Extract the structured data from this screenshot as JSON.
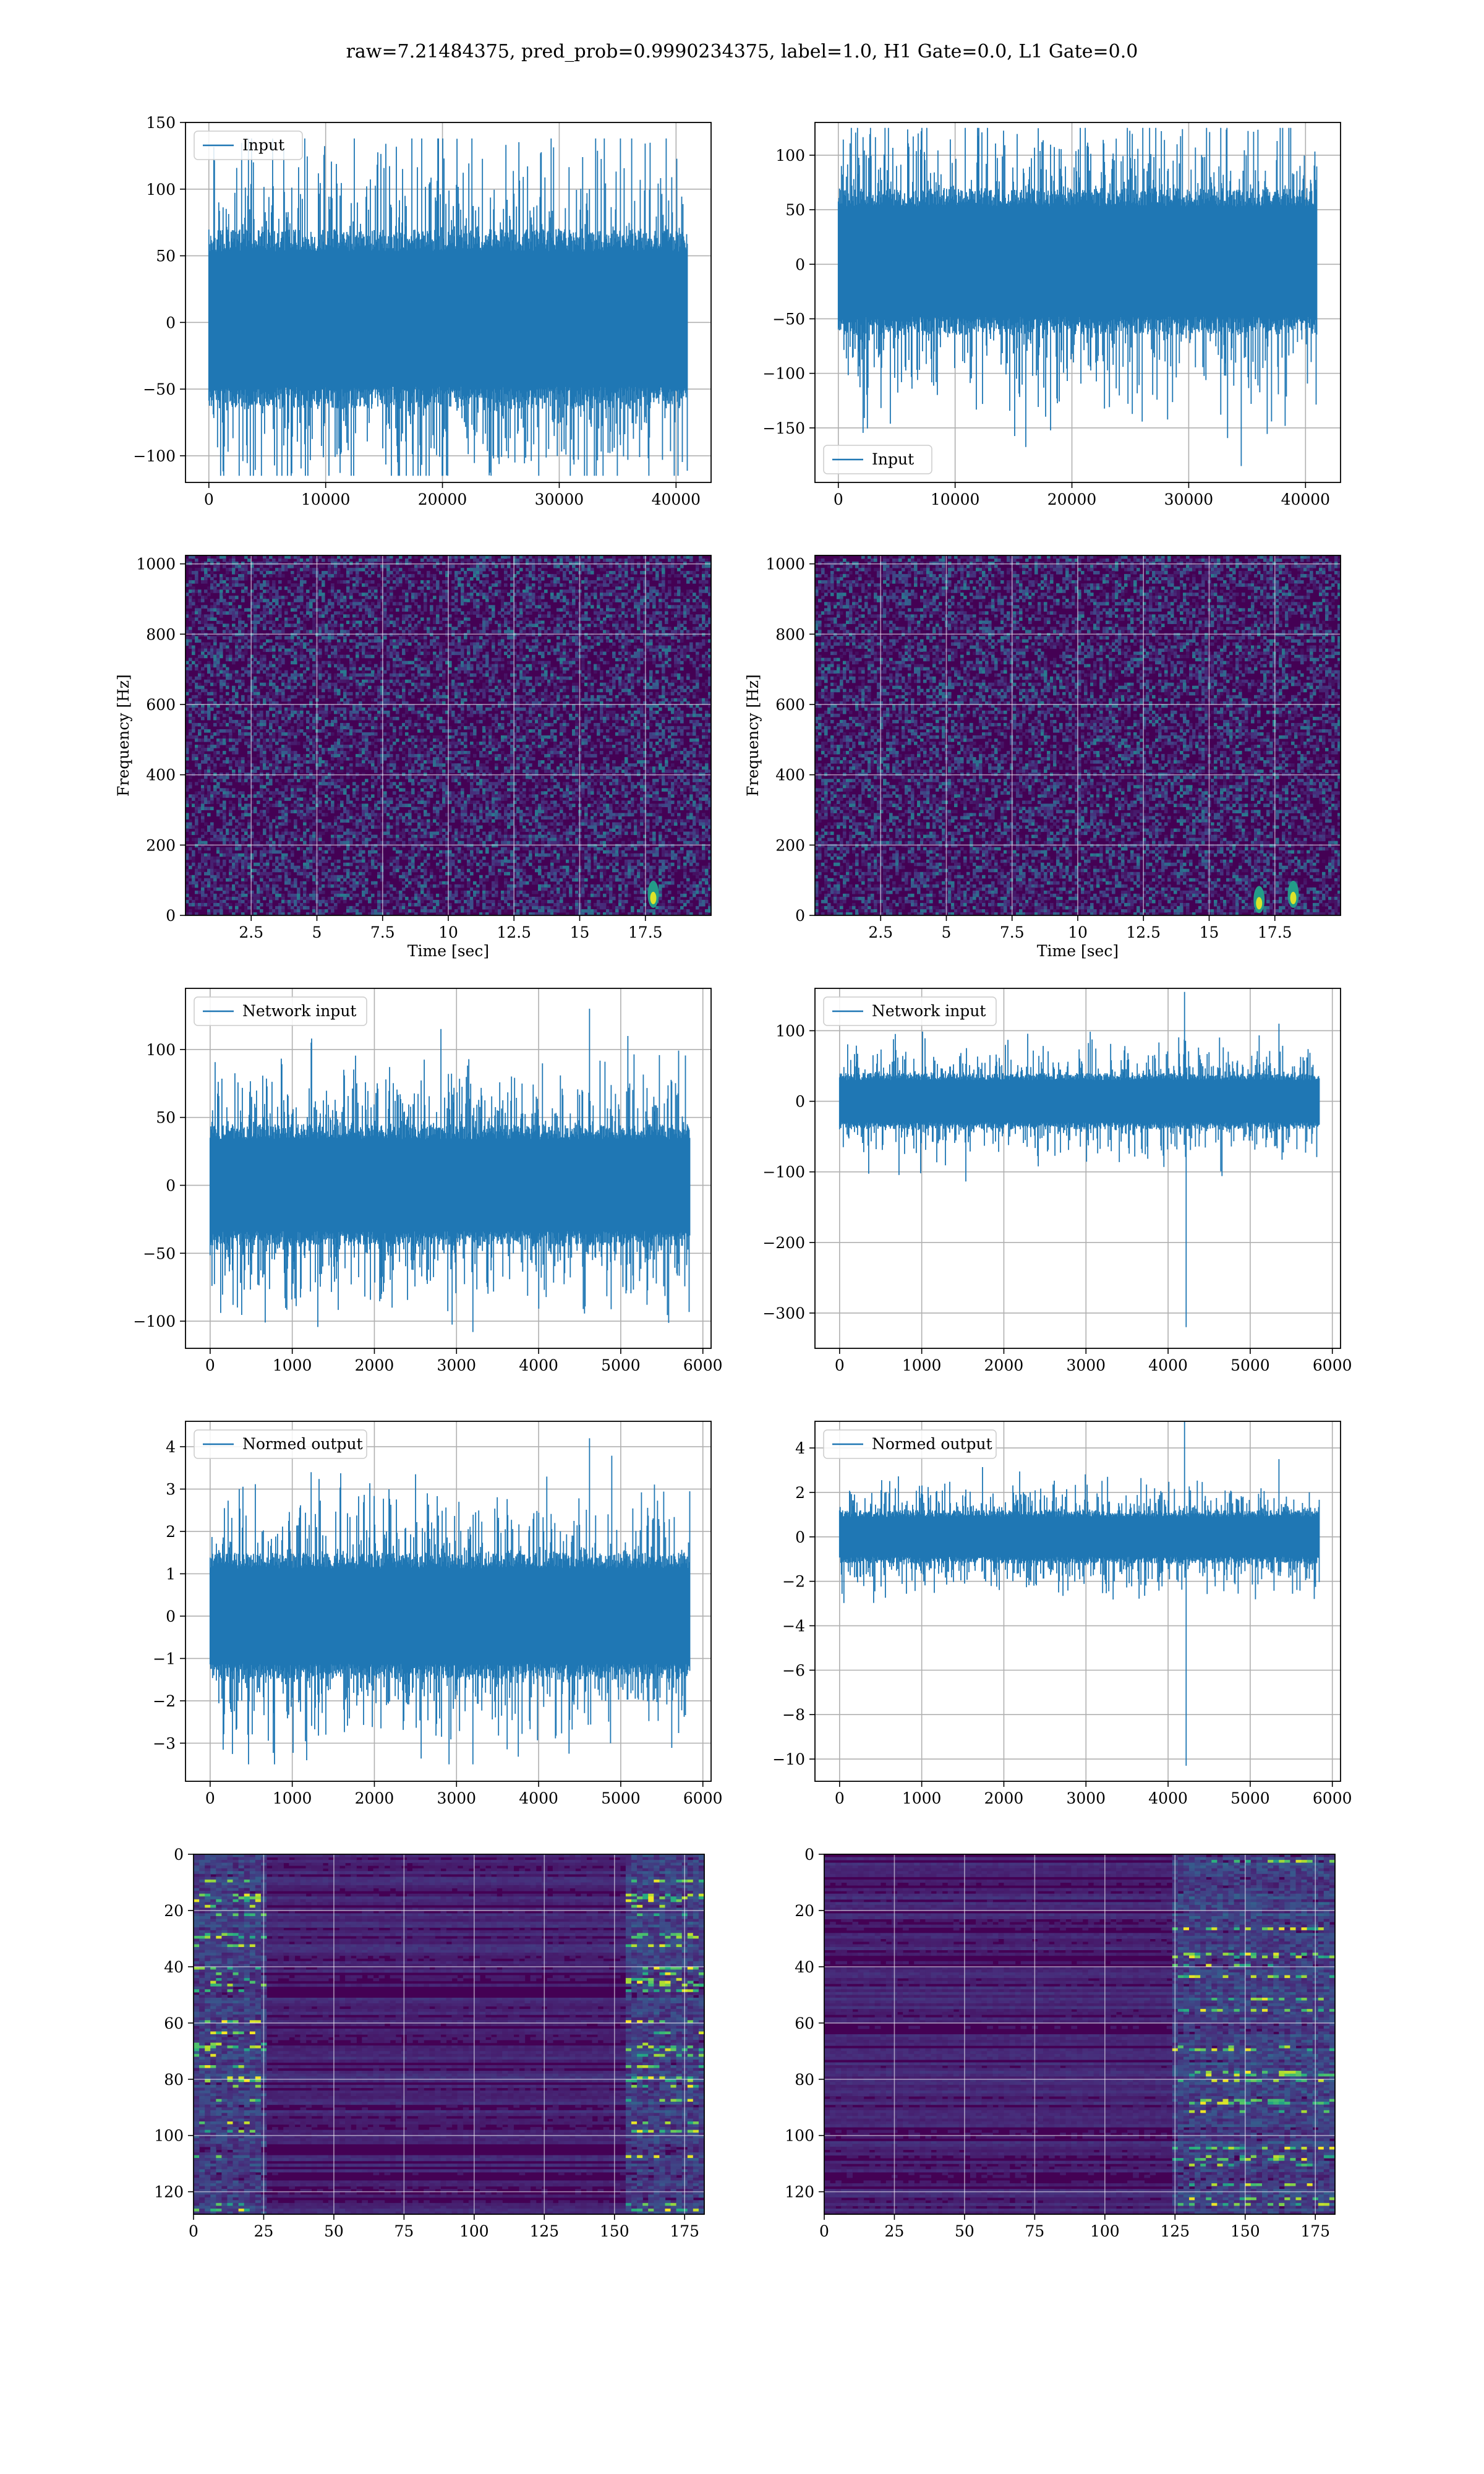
{
  "suptitle": "raw=7.21484375, pred_prob=0.9990234375, label=1.0, H1 Gate=0.0, L1 Gate=0.0",
  "colors": {
    "line": "#1f77b4",
    "grid": "#b0b0b0",
    "viridis_low": "#440154",
    "viridis_high": "#fde725"
  },
  "chart_data": [
    {
      "id": "input-h1",
      "type": "line",
      "legend": "Input",
      "legend_loc": "upper left",
      "xlim": [
        -2000,
        43000
      ],
      "ylim": [
        -120,
        150
      ],
      "xticks": [
        0,
        10000,
        20000,
        30000,
        40000
      ],
      "yticks": [
        -100,
        -50,
        0,
        50,
        100,
        150
      ],
      "series": [
        {
          "x_range": [
            0,
            40960
          ],
          "n_samples": 40960,
          "typical_band": [
            -65,
            70
          ],
          "min": -115,
          "max": 138,
          "spikes": [
            [
              36200,
              138
            ],
            [
              26200,
              -105
            ],
            [
              4500,
              -115
            ]
          ]
        }
      ]
    },
    {
      "id": "input-l1",
      "type": "line",
      "legend": "Input",
      "legend_loc": "lower left",
      "xlim": [
        -2000,
        43000
      ],
      "ylim": [
        -200,
        130
      ],
      "xticks": [
        0,
        10000,
        20000,
        30000,
        40000
      ],
      "yticks": [
        -150,
        -100,
        -50,
        0,
        50,
        100
      ],
      "series": [
        {
          "x_range": [
            0,
            40960
          ],
          "n_samples": 40960,
          "typical_band": [
            -65,
            70
          ],
          "min": -185,
          "max": 125,
          "spikes": [
            [
              34500,
              -185
            ],
            [
              4000,
              125
            ],
            [
              29000,
              110
            ]
          ]
        }
      ]
    },
    {
      "id": "spectrogram-h1",
      "type": "heatmap",
      "xlabel": "Time [sec]",
      "ylabel": "Frequency [Hz]",
      "xlim": [
        0,
        20
      ],
      "ylim": [
        0,
        1024
      ],
      "xticks": [
        2.5,
        5.0,
        7.5,
        10.0,
        12.5,
        15.0,
        17.5
      ],
      "yticks": [
        0,
        200,
        400,
        600,
        800,
        1000
      ],
      "colormap": "viridis",
      "hotspots": [
        [
          17.8,
          60
        ]
      ]
    },
    {
      "id": "spectrogram-l1",
      "type": "heatmap",
      "xlabel": "Time [sec]",
      "ylabel": "Frequency [Hz]",
      "xlim": [
        0,
        20
      ],
      "ylim": [
        0,
        1024
      ],
      "xticks": [
        2.5,
        5.0,
        7.5,
        10.0,
        12.5,
        15.0,
        17.5
      ],
      "yticks": [
        0,
        200,
        400,
        600,
        800,
        1000
      ],
      "colormap": "viridis",
      "hotspots": [
        [
          16.9,
          45
        ],
        [
          18.2,
          60
        ]
      ]
    },
    {
      "id": "network-input-h1",
      "type": "line",
      "legend": "Network input",
      "legend_loc": "upper left",
      "xlim": [
        -300,
        6100
      ],
      "ylim": [
        -120,
        145
      ],
      "xticks": [
        0,
        1000,
        2000,
        3000,
        4000,
        5000,
        6000
      ],
      "yticks": [
        -100,
        -50,
        0,
        50,
        100
      ],
      "series": [
        {
          "x_range": [
            0,
            5840
          ],
          "n_samples": 5840,
          "typical_band": [
            -45,
            45
          ],
          "min": -108,
          "max": 130,
          "spikes": [
            [
              4620,
              130
            ],
            [
              3200,
              -108
            ],
            [
              1230,
              105
            ]
          ]
        }
      ]
    },
    {
      "id": "network-input-l1",
      "type": "line",
      "legend": "Network input",
      "legend_loc": "upper left",
      "xlim": [
        -300,
        6100
      ],
      "ylim": [
        -350,
        160
      ],
      "xticks": [
        0,
        1000,
        2000,
        3000,
        4000,
        5000,
        6000
      ],
      "yticks": [
        -300,
        -200,
        -100,
        0,
        100
      ],
      "series": [
        {
          "x_range": [
            0,
            5840
          ],
          "n_samples": 5840,
          "typical_band": [
            -40,
            40
          ],
          "min": -320,
          "max": 155,
          "spikes": [
            [
              4220,
              -320
            ],
            [
              4200,
              155
            ],
            [
              5350,
              110
            ]
          ]
        }
      ]
    },
    {
      "id": "normed-output-h1",
      "type": "line",
      "legend": "Normed output",
      "legend_loc": "upper left",
      "xlim": [
        -300,
        6100
      ],
      "ylim": [
        -3.9,
        4.6
      ],
      "xticks": [
        0,
        1000,
        2000,
        3000,
        4000,
        5000,
        6000
      ],
      "yticks": [
        -3,
        -2,
        -1,
        0,
        1,
        2,
        3,
        4
      ],
      "series": [
        {
          "x_range": [
            0,
            5840
          ],
          "n_samples": 5840,
          "typical_band": [
            -1.5,
            1.5
          ],
          "min": -3.5,
          "max": 4.2,
          "spikes": [
            [
              4620,
              4.2
            ],
            [
              3200,
              -3.5
            ],
            [
              1230,
              3.4
            ]
          ]
        }
      ]
    },
    {
      "id": "normed-output-l1",
      "type": "line",
      "legend": "Normed output",
      "legend_loc": "upper left",
      "xlim": [
        -300,
        6100
      ],
      "ylim": [
        -11,
        5.2
      ],
      "xticks": [
        0,
        1000,
        2000,
        3000,
        4000,
        5000,
        6000
      ],
      "yticks": [
        -10,
        -8,
        -6,
        -4,
        -2,
        0,
        2,
        4
      ],
      "series": [
        {
          "x_range": [
            0,
            5840
          ],
          "n_samples": 5840,
          "typical_band": [
            -1.2,
            1.2
          ],
          "min": -10.3,
          "max": 5.2,
          "spikes": [
            [
              4220,
              -10.3
            ],
            [
              4200,
              5.2
            ],
            [
              5350,
              3.5
            ]
          ]
        }
      ]
    },
    {
      "id": "feature-map-h1",
      "type": "heatmap",
      "xlim": [
        0,
        182
      ],
      "ylim": [
        128,
        0
      ],
      "xticks": [
        0,
        25,
        50,
        75,
        100,
        125,
        150,
        175
      ],
      "yticks": [
        0,
        20,
        40,
        60,
        80,
        100,
        120
      ],
      "colormap": "viridis",
      "active_columns": [
        [
          0,
          25
        ],
        [
          155,
          182
        ]
      ]
    },
    {
      "id": "feature-map-l1",
      "type": "heatmap",
      "xlim": [
        0,
        182
      ],
      "ylim": [
        128,
        0
      ],
      "xticks": [
        0,
        25,
        50,
        75,
        100,
        125,
        150,
        175
      ],
      "yticks": [
        0,
        20,
        40,
        60,
        80,
        100,
        120
      ],
      "colormap": "viridis",
      "active_columns": [
        [
          125,
          182
        ]
      ]
    }
  ]
}
